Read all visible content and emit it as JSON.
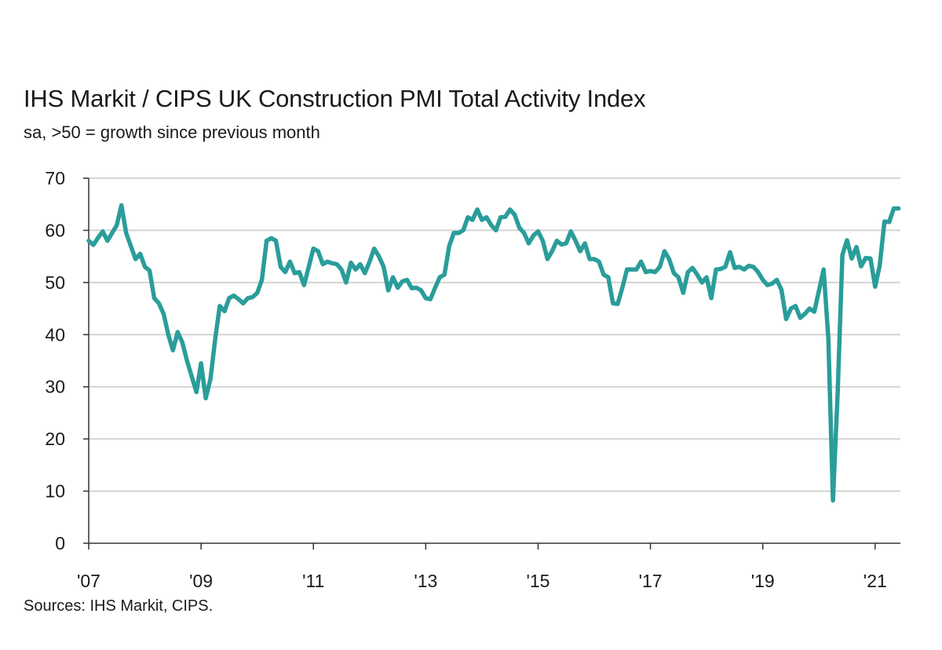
{
  "title": "IHS Markit / CIPS UK Construction PMI Total Activity Index",
  "subtitle": "sa, >50 = growth since previous month",
  "source": "Sources: IHS Markit, CIPS.",
  "colors": {
    "line": "#2a9d9a",
    "grid": "#d4d4d4",
    "axis": "#333333"
  },
  "chart_data": {
    "type": "line",
    "title": "IHS Markit / CIPS UK Construction PMI Total Activity Index",
    "subtitle": "sa, >50 = growth since previous month",
    "xlabel": "",
    "ylabel": "",
    "ylim": [
      0,
      70
    ],
    "yticks": [
      0,
      10,
      20,
      30,
      40,
      50,
      60,
      70
    ],
    "xlim": [
      2007.0,
      2021.45
    ],
    "xticks": [
      {
        "value": 2007,
        "label": "'07"
      },
      {
        "value": 2009,
        "label": "'09"
      },
      {
        "value": 2011,
        "label": "'11"
      },
      {
        "value": 2013,
        "label": "'13"
      },
      {
        "value": 2015,
        "label": "'15"
      },
      {
        "value": 2017,
        "label": "'17"
      },
      {
        "value": 2019,
        "label": "'19"
      },
      {
        "value": 2021,
        "label": "'21"
      }
    ],
    "grid": true,
    "legend": "none",
    "series": [
      {
        "x": [
          2007.0,
          2007.083,
          2007.167,
          2007.25,
          2007.333,
          2007.417,
          2007.5,
          2007.583,
          2007.667,
          2007.75,
          2007.833,
          2007.917,
          2008.0,
          2008.083,
          2008.167,
          2008.25,
          2008.333,
          2008.417,
          2008.5,
          2008.583,
          2008.667,
          2008.75,
          2008.833,
          2008.917,
          2009.0,
          2009.083,
          2009.167,
          2009.25,
          2009.333,
          2009.417,
          2009.5,
          2009.583,
          2009.667,
          2009.75,
          2009.833,
          2009.917,
          2010.0,
          2010.083,
          2010.167,
          2010.25,
          2010.333,
          2010.417,
          2010.5,
          2010.583,
          2010.667,
          2010.75,
          2010.833,
          2010.917,
          2011.0,
          2011.083,
          2011.167,
          2011.25,
          2011.333,
          2011.417,
          2011.5,
          2011.583,
          2011.667,
          2011.75,
          2011.833,
          2011.917,
          2012.0,
          2012.083,
          2012.167,
          2012.25,
          2012.333,
          2012.417,
          2012.5,
          2012.583,
          2012.667,
          2012.75,
          2012.833,
          2012.917,
          2013.0,
          2013.083,
          2013.167,
          2013.25,
          2013.333,
          2013.417,
          2013.5,
          2013.583,
          2013.667,
          2013.75,
          2013.833,
          2013.917,
          2014.0,
          2014.083,
          2014.167,
          2014.25,
          2014.333,
          2014.417,
          2014.5,
          2014.583,
          2014.667,
          2014.75,
          2014.833,
          2014.917,
          2015.0,
          2015.083,
          2015.167,
          2015.25,
          2015.333,
          2015.417,
          2015.5,
          2015.583,
          2015.667,
          2015.75,
          2015.833,
          2015.917,
          2016.0,
          2016.083,
          2016.167,
          2016.25,
          2016.333,
          2016.417,
          2016.5,
          2016.583,
          2016.667,
          2016.75,
          2016.833,
          2016.917,
          2017.0,
          2017.083,
          2017.167,
          2017.25,
          2017.333,
          2017.417,
          2017.5,
          2017.583,
          2017.667,
          2017.75,
          2017.833,
          2017.917,
          2018.0,
          2018.083,
          2018.167,
          2018.25,
          2018.333,
          2018.417,
          2018.5,
          2018.583,
          2018.667,
          2018.75,
          2018.833,
          2018.917,
          2019.0,
          2019.083,
          2019.167,
          2019.25,
          2019.333,
          2019.417,
          2019.5,
          2019.583,
          2019.667,
          2019.75,
          2019.833,
          2019.917,
          2020.0,
          2020.083,
          2020.167,
          2020.25,
          2020.333,
          2020.417,
          2020.5,
          2020.583,
          2020.667,
          2020.75,
          2020.833,
          2020.917,
          2021.0,
          2021.083,
          2021.167,
          2021.25,
          2021.333,
          2021.417
        ],
        "y": [
          58.0,
          57.2,
          58.6,
          59.8,
          58.0,
          59.5,
          61.0,
          64.8,
          59.5,
          57.0,
          54.5,
          55.5,
          53.0,
          52.3,
          47.0,
          46.0,
          44.0,
          40.0,
          37.0,
          40.5,
          38.5,
          35.0,
          32.0,
          29.0,
          34.5,
          27.8,
          31.5,
          39.0,
          45.5,
          44.5,
          47.0,
          47.5,
          46.8,
          46.0,
          47.0,
          47.2,
          48.0,
          50.5,
          58.0,
          58.5,
          58.0,
          53.0,
          52.0,
          54.0,
          51.8,
          52.0,
          49.5,
          53.0,
          56.5,
          56.0,
          53.5,
          54.0,
          53.7,
          53.5,
          52.5,
          50.0,
          53.8,
          52.5,
          53.5,
          51.8,
          54.0,
          56.5,
          55.0,
          53.0,
          48.5,
          51.0,
          49.0,
          50.2,
          50.5,
          48.9,
          49.0,
          48.5,
          47.0,
          46.8,
          49.0,
          51.0,
          51.5,
          57.0,
          59.5,
          59.5,
          60.0,
          62.5,
          62.0,
          64.0,
          62.0,
          62.5,
          61.0,
          60.0,
          62.5,
          62.6,
          64.0,
          63.0,
          60.5,
          59.5,
          57.5,
          59.0,
          59.8,
          58.0,
          54.5,
          56.0,
          58.0,
          57.3,
          57.5,
          59.8,
          58.0,
          56.0,
          57.5,
          54.5,
          54.5,
          54.0,
          51.5,
          51.0,
          46.0,
          45.9,
          49.0,
          52.5,
          52.5,
          52.5,
          54.0,
          52.0,
          52.2,
          52.0,
          53.0,
          56.0,
          54.5,
          51.8,
          51.0,
          48.0,
          52.0,
          52.8,
          51.5,
          50.0,
          51.0,
          47.0,
          52.5,
          52.6,
          53.0,
          55.8,
          52.8,
          53.0,
          52.5,
          53.2,
          53.0,
          52.0,
          50.5,
          49.5,
          49.8,
          50.5,
          48.6,
          43.0,
          45.0,
          45.5,
          43.2,
          44.0,
          45.0,
          44.4,
          48.4,
          52.5,
          39.3,
          8.2,
          28.9,
          55.3,
          58.1,
          54.6,
          56.8,
          53.1,
          54.7,
          54.6,
          49.2,
          53.3,
          61.7,
          61.6,
          64.2,
          64.2
        ]
      }
    ]
  }
}
